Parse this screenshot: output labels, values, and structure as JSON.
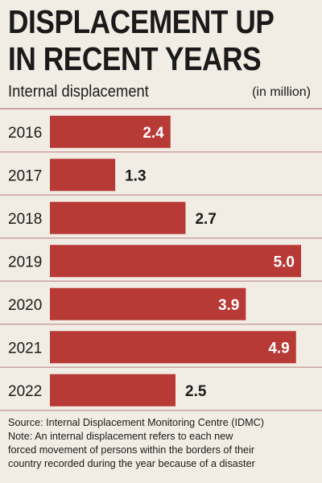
{
  "header": {
    "title_line1": "DISPLACEMENT UP",
    "title_line2": "IN RECENT YEARS",
    "subtitle": "Internal displacement",
    "unit": "(in million)"
  },
  "chart_data": {
    "type": "bar",
    "orientation": "horizontal",
    "categories": [
      "2016",
      "2017",
      "2018",
      "2019",
      "2020",
      "2021",
      "2022"
    ],
    "values": [
      2.4,
      1.3,
      2.7,
      5.0,
      3.9,
      4.9,
      2.5
    ],
    "value_labels": [
      "2.4",
      "1.3",
      "2.7",
      "5.0",
      "3.9",
      "4.9",
      "2.5"
    ],
    "label_inside": [
      true,
      false,
      false,
      true,
      true,
      true,
      false
    ],
    "title": "DISPLACEMENT UP IN RECENT YEARS",
    "xlim": [
      0,
      5.0
    ],
    "bar_color": "#b73a37",
    "row_line_color": "#c9a2a2",
    "grid": false,
    "legend": "none"
  },
  "footer": {
    "source": "Source: Internal Displacement Monitoring Centre (IDMC)",
    "note_line1": "Note: An internal displacement refers to each new",
    "note_line2": "forced movement of persons within the borders of their",
    "note_line3": "country recorded during the year because of a disaster"
  }
}
